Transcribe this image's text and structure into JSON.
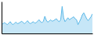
{
  "chart_data": {
    "type": "area",
    "values": [
      18,
      20,
      22,
      20,
      18,
      21,
      24,
      20,
      18,
      21,
      23,
      20,
      21,
      23,
      25,
      22,
      20,
      23,
      26,
      22,
      20,
      22,
      24,
      21,
      22,
      25,
      28,
      24,
      22,
      25,
      35,
      27,
      23,
      25,
      28,
      25,
      26,
      28,
      30,
      26,
      24,
      28,
      55,
      32,
      24,
      28,
      32,
      28,
      30,
      32,
      34,
      30,
      28,
      18,
      24,
      30,
      38,
      42,
      36,
      30,
      26,
      30,
      34,
      40
    ],
    "color": "#5bb8e8",
    "ylim": [
      0,
      65
    ],
    "tick_labels": false
  }
}
